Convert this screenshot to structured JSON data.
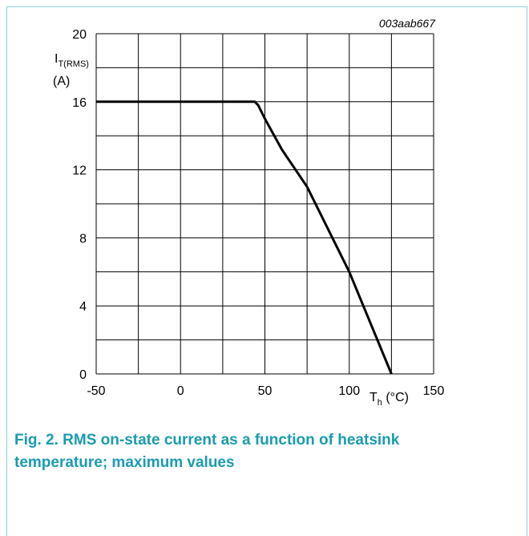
{
  "chart_data": {
    "type": "line",
    "code": "003aab667",
    "ylabel": "I",
    "ylabel_sub": "T(RMS)",
    "ylabel_unit": "(A)",
    "xlabel": "T",
    "xlabel_sub": "h",
    "xlabel_unit": " (°C)",
    "x": [
      -50,
      44,
      46,
      50,
      60,
      75,
      90,
      100,
      110,
      125
    ],
    "series": [
      {
        "color": "#000000",
        "values": [
          16,
          16,
          15.8,
          15,
          13.2,
          11,
          8,
          6,
          3.6,
          0
        ]
      }
    ],
    "xlim": [
      -50,
      150
    ],
    "ylim": [
      0,
      20
    ],
    "xticks": [
      -50,
      0,
      50,
      100,
      150
    ],
    "yticks": [
      0,
      4,
      8,
      12,
      16,
      20
    ],
    "xgrid": [
      -50,
      -25,
      0,
      25,
      50,
      75,
      100,
      125,
      150
    ],
    "ygrid": [
      0,
      2,
      4,
      6,
      8,
      10,
      12,
      14,
      16,
      18,
      20
    ],
    "grid": true,
    "caption": "Fig. 2. RMS on-state current as a function of heatsink temperature; maximum values"
  }
}
